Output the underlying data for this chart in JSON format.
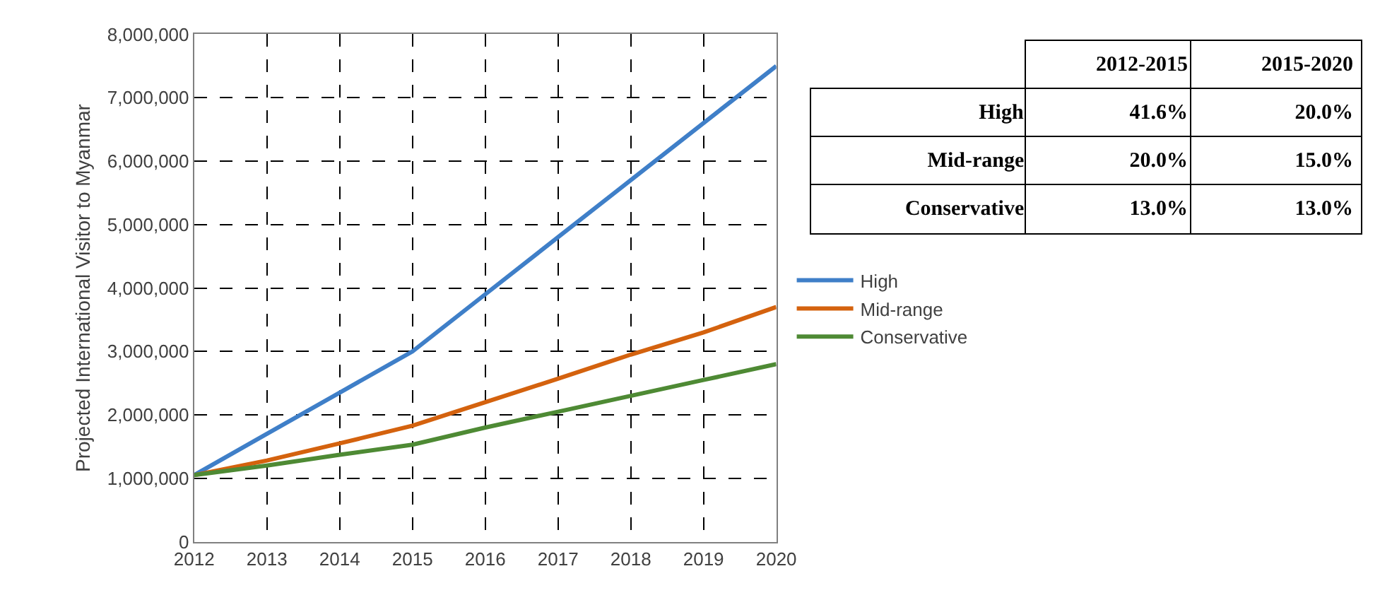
{
  "chart_data": [
    {
      "type": "line",
      "ylabel": "Projected International Visitor to Myanmar",
      "x": [
        2012,
        2013,
        2014,
        2015,
        2016,
        2017,
        2018,
        2019,
        2020
      ],
      "series": [
        {
          "name": "High",
          "color": "#3f7fc8",
          "values": [
            1050000,
            1700000,
            2350000,
            3000000,
            3900000,
            4800000,
            5700000,
            6600000,
            7500000
          ]
        },
        {
          "name": "Mid-range",
          "color": "#d4620e",
          "values": [
            1050000,
            1280000,
            1550000,
            1830000,
            2200000,
            2570000,
            2950000,
            3300000,
            3700000
          ]
        },
        {
          "name": "Conservative",
          "color": "#4e8a34",
          "values": [
            1050000,
            1200000,
            1370000,
            1530000,
            1800000,
            2050000,
            2300000,
            2550000,
            2800000
          ]
        }
      ],
      "xlim": [
        2012,
        2020
      ],
      "xticks": [
        2012,
        2013,
        2014,
        2015,
        2016,
        2017,
        2018,
        2019,
        2020
      ],
      "ylim": [
        0,
        8000000
      ],
      "yticks": [
        {
          "value": 0,
          "label": "0"
        },
        {
          "value": 1000000,
          "label": "1,000,000"
        },
        {
          "value": 2000000,
          "label": "2,000,000"
        },
        {
          "value": 3000000,
          "label": "3,000,000"
        },
        {
          "value": 4000000,
          "label": "4,000,000"
        },
        {
          "value": 5000000,
          "label": "5,000,000"
        },
        {
          "value": 6000000,
          "label": "6,000,000"
        },
        {
          "value": 7000000,
          "label": "7,000,000"
        },
        {
          "value": 8000000,
          "label": "8,000,000"
        }
      ],
      "grid": true,
      "legend": "right",
      "line_style": "solid"
    },
    {
      "type": "other",
      "categories": [
        "2012-2015",
        "2015-2020"
      ],
      "y_categories": [
        "High",
        "Mid-range",
        "Conservative"
      ],
      "cell_labels": [
        [
          "41.6%",
          "20.0%"
        ],
        [
          "20.0%",
          "15.0%"
        ],
        [
          "13.0%",
          "13.0%"
        ]
      ]
    }
  ]
}
